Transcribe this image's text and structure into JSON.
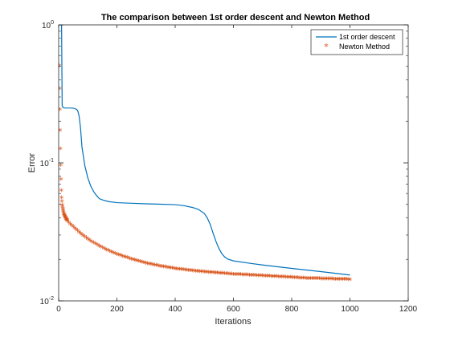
{
  "chart_data": {
    "type": "line",
    "title": "The comparison between 1st order descent and Newton Method",
    "xlabel": "Iterations",
    "ylabel": "Error",
    "xlim": [
      0,
      1200
    ],
    "ylim": [
      0.01,
      1
    ],
    "yscale": "log",
    "xticks": [
      0,
      200,
      400,
      600,
      800,
      1000,
      1200
    ],
    "xtick_labels": [
      "0",
      "200",
      "400",
      "600",
      "800",
      "1000",
      "1200"
    ],
    "yticks": [
      0.01,
      0.1,
      1
    ],
    "ytick_labels": [
      {
        "base": "10",
        "exp": "-2"
      },
      {
        "base": "10",
        "exp": "-1"
      },
      {
        "base": "10",
        "exp": "0"
      }
    ],
    "grid": false,
    "legend_position": "top-right",
    "series": [
      {
        "name": "1st order descent",
        "style": "line",
        "color": "#0072BD",
        "x": [
          1,
          5,
          10,
          12,
          15,
          20,
          30,
          40,
          50,
          55,
          60,
          65,
          70,
          75,
          80,
          90,
          100,
          110,
          120,
          130,
          140,
          150,
          170,
          200,
          250,
          300,
          350,
          400,
          430,
          460,
          480,
          500,
          510,
          520,
          530,
          540,
          550,
          560,
          570,
          580,
          600,
          650,
          700,
          800,
          900,
          1000
        ],
        "y": [
          1.0,
          1.0,
          0.99,
          0.26,
          0.252,
          0.25,
          0.25,
          0.25,
          0.249,
          0.247,
          0.245,
          0.24,
          0.22,
          0.18,
          0.13,
          0.095,
          0.078,
          0.068,
          0.062,
          0.058,
          0.055,
          0.054,
          0.0525,
          0.0515,
          0.051,
          0.0505,
          0.0502,
          0.0498,
          0.049,
          0.0475,
          0.046,
          0.043,
          0.04,
          0.036,
          0.031,
          0.027,
          0.024,
          0.022,
          0.0208,
          0.0201,
          0.0195,
          0.0188,
          0.0182,
          0.0172,
          0.0163,
          0.0154
        ]
      },
      {
        "name": "Newton Method",
        "style": "markers",
        "marker": "*",
        "color": "#D95319",
        "x": [
          1,
          2,
          3,
          4,
          5,
          6,
          7,
          8,
          9,
          10,
          12,
          14,
          16,
          18,
          20,
          25,
          30,
          35,
          40,
          50,
          60,
          70,
          80,
          90,
          100,
          120,
          140,
          160,
          180,
          200,
          250,
          300,
          350,
          400,
          450,
          500,
          550,
          600,
          650,
          700,
          750,
          800,
          850,
          900,
          950,
          1000
        ],
        "y": [
          1.0,
          0.5,
          0.34,
          0.24,
          0.17,
          0.125,
          0.095,
          0.075,
          0.062,
          0.055,
          0.049,
          0.046,
          0.044,
          0.042,
          0.041,
          0.039,
          0.0375,
          0.0365,
          0.0355,
          0.034,
          0.0325,
          0.031,
          0.0298,
          0.0287,
          0.0277,
          0.026,
          0.0246,
          0.0234,
          0.0224,
          0.0215,
          0.0198,
          0.0185,
          0.0176,
          0.0169,
          0.0164,
          0.016,
          0.0157,
          0.0154,
          0.0152,
          0.015,
          0.0148,
          0.0146,
          0.0144,
          0.0143,
          0.0142,
          0.0141
        ]
      }
    ]
  }
}
